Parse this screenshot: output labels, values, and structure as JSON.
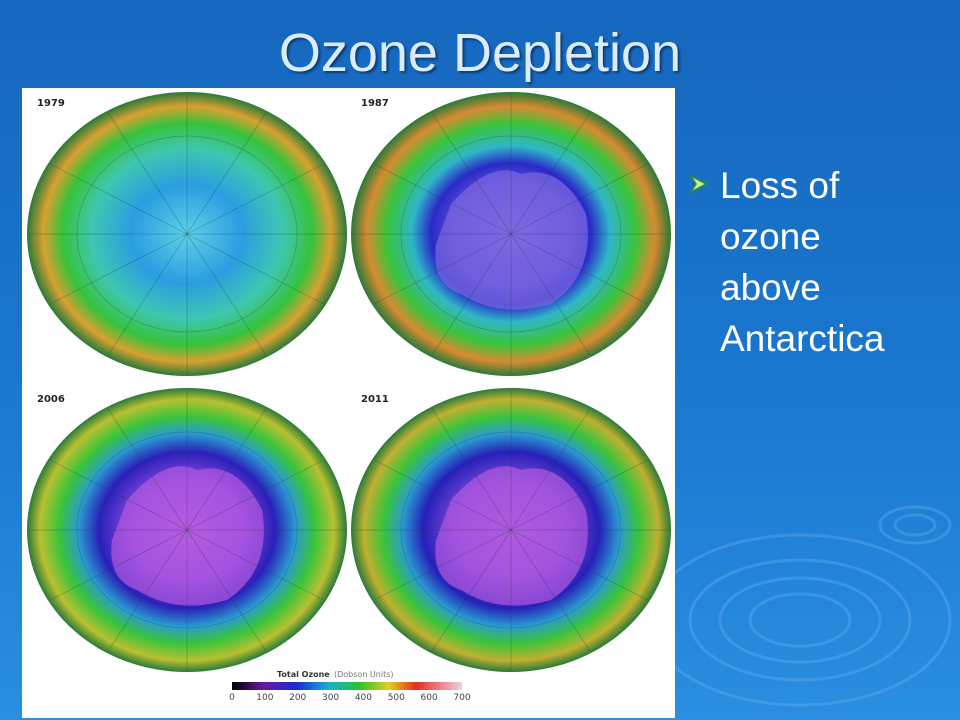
{
  "title": "Ozone Depletion",
  "figure": {
    "panels": [
      {
        "year": "1979"
      },
      {
        "year": "1987"
      },
      {
        "year": "2006"
      },
      {
        "year": "2011"
      }
    ],
    "colorbar": {
      "title": "Total Ozone",
      "units": "(Dobson Units)",
      "ticks": [
        0,
        100,
        200,
        300,
        400,
        500,
        600,
        700
      ]
    }
  },
  "bullets": [
    "Loss of ozone above Antarctica"
  ]
}
